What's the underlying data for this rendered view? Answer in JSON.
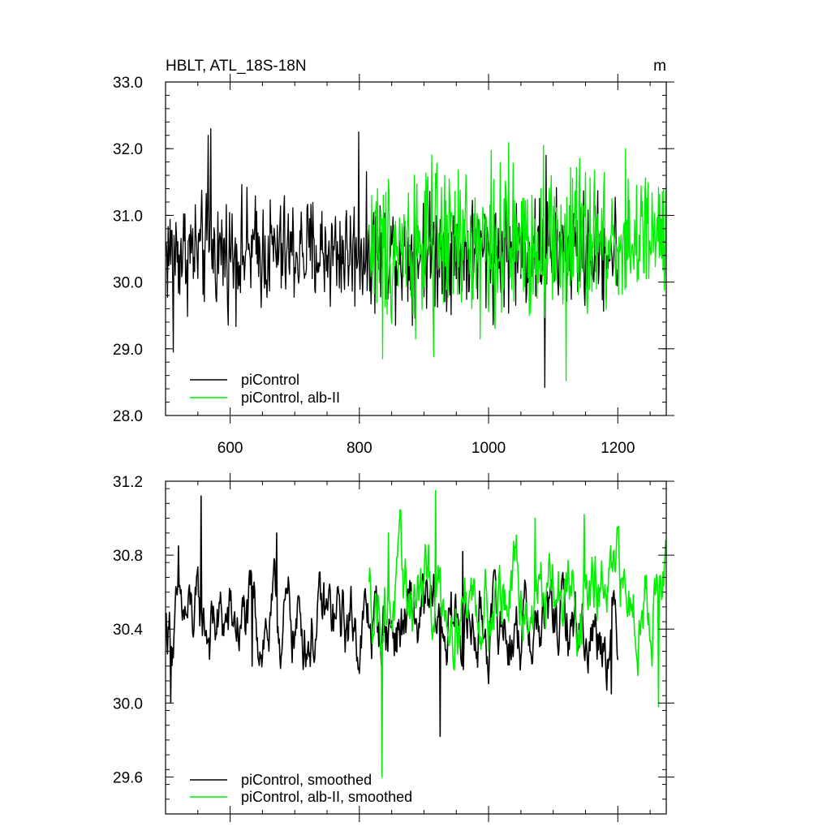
{
  "chart_data": [
    {
      "type": "line",
      "title": "HBLT, ATL_18S-18N",
      "units": "m",
      "xlabel": "",
      "ylabel": "",
      "xlim": [
        500,
        1275
      ],
      "ylim": [
        28.0,
        33.0
      ],
      "x_ticks": [
        600,
        800,
        1000,
        1200
      ],
      "x_tick_labels": [
        "600",
        "800",
        "1000",
        "1200"
      ],
      "y_ticks": [
        28.0,
        29.0,
        30.0,
        31.0,
        32.0,
        33.0
      ],
      "y_tick_labels": [
        "28.0",
        "29.0",
        "30.0",
        "31.0",
        "32.0",
        "33.0"
      ],
      "grid": false,
      "legend_position": "bottom-left",
      "series": [
        {
          "name": "piControl",
          "color": "#000000",
          "x_start": 501,
          "x_end": 1200,
          "mean": 30.45,
          "amplitude": 0.55,
          "markers": [
            [
              512,
              28.95
            ],
            [
              566,
              32.2
            ],
            [
              570,
              32.3
            ],
            [
              799,
              32.25
            ],
            [
              1087,
              28.42
            ],
            [
              1089,
              31.9
            ]
          ]
        },
        {
          "name": "piControl, alb-II",
          "color": "#00ee00",
          "x_start": 815,
          "x_end": 1275,
          "mean": 30.6,
          "amplitude": 0.75,
          "markers": [
            [
              836,
              28.85
            ],
            [
              915,
              28.88
            ],
            [
              1085,
              32.05
            ],
            [
              1120,
              28.52
            ],
            [
              1212,
              32.0
            ],
            [
              1263,
              31.42
            ]
          ]
        }
      ]
    },
    {
      "type": "line",
      "title": "",
      "xlabel": "",
      "ylabel": "",
      "xlim": [
        500,
        1275
      ],
      "ylim": [
        29.4,
        31.2
      ],
      "x_ticks": [
        600,
        800,
        1000,
        1200
      ],
      "y_ticks": [
        29.6,
        30.0,
        30.4,
        30.8,
        31.2
      ],
      "y_tick_labels": [
        "29.6",
        "30.0",
        "30.4",
        "30.8",
        "31.2"
      ],
      "grid": false,
      "legend_position": "bottom-left",
      "series": [
        {
          "name": "piControl, smoothed",
          "color": "#000000",
          "x_start": 501,
          "x_end": 1200,
          "mean": 30.42,
          "amplitude": 0.13,
          "markers": [
            [
              508,
              30.0
            ],
            [
              520,
              30.85
            ],
            [
              555,
              31.12
            ],
            [
              634,
              30.2
            ],
            [
              672,
              30.92
            ],
            [
              925,
              29.82
            ],
            [
              960,
              30.82
            ],
            [
              1190,
              30.05
            ]
          ]
        },
        {
          "name": "piControl, alb-II, smoothed",
          "color": "#00ee00",
          "x_start": 815,
          "x_end": 1275,
          "mean": 30.58,
          "amplitude": 0.15,
          "markers": [
            [
              835,
              29.6
            ],
            [
              845,
              30.92
            ],
            [
              918,
              31.15
            ],
            [
              1072,
              31.0
            ],
            [
              1148,
              31.02
            ],
            [
              1263,
              29.98
            ],
            [
              1275,
              30.8
            ]
          ]
        }
      ]
    }
  ]
}
